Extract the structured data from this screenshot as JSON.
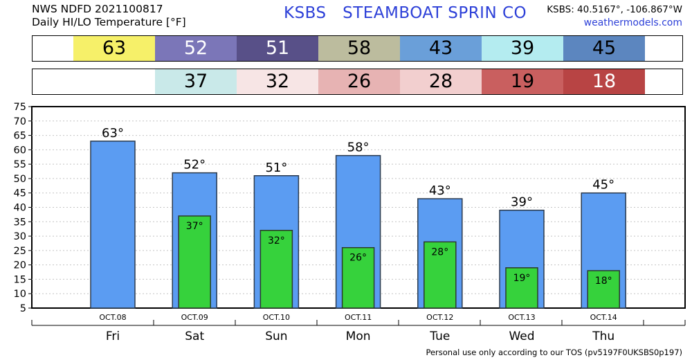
{
  "header": {
    "line1": "NWS NDFD 2021100817",
    "line2": "Daily HI/LO Temperature [°F]",
    "title": "KSBS   STEAMBOAT SPRIN CO",
    "coords": "KSBS: 40.5167°, -106.867°W",
    "site": "weathermodels.com"
  },
  "hi_strip": [
    {
      "text": "63",
      "bg": "#f6f069",
      "fg": "#000000"
    },
    {
      "text": "52",
      "bg": "#7b76b8",
      "fg": "#ffffff"
    },
    {
      "text": "51",
      "bg": "#585088",
      "fg": "#ffffff"
    },
    {
      "text": "58",
      "bg": "#bcbc9e",
      "fg": "#000000"
    },
    {
      "text": "43",
      "bg": "#6a9fd9",
      "fg": "#000000"
    },
    {
      "text": "39",
      "bg": "#b4ecf0",
      "fg": "#000000"
    },
    {
      "text": "45",
      "bg": "#5c86bf",
      "fg": "#000000"
    }
  ],
  "lo_strip": [
    {
      "text": "",
      "bg": "#ffffff",
      "fg": "#000000"
    },
    {
      "text": "37",
      "bg": "#c9e9e9",
      "fg": "#000000"
    },
    {
      "text": "32",
      "bg": "#f7e5e5",
      "fg": "#000000"
    },
    {
      "text": "26",
      "bg": "#e7b3b3",
      "fg": "#000000"
    },
    {
      "text": "28",
      "bg": "#f2cfcf",
      "fg": "#000000"
    },
    {
      "text": "19",
      "bg": "#c95f5f",
      "fg": "#000000"
    },
    {
      "text": "18",
      "bg": "#b84444",
      "fg": "#ffffff"
    }
  ],
  "chart_data": {
    "type": "bar",
    "categories": [
      "Fri",
      "Sat",
      "Sun",
      "Mon",
      "Tue",
      "Wed",
      "Thu"
    ],
    "dates": [
      "OCT.08",
      "OCT.09",
      "OCT.10",
      "OCT.11",
      "OCT.12",
      "OCT.13",
      "OCT.14"
    ],
    "series": [
      {
        "values": [
          63,
          52,
          51,
          58,
          43,
          39,
          45
        ],
        "color": "#5b9cf2"
      },
      {
        "values": [
          null,
          37,
          32,
          26,
          28,
          19,
          18
        ],
        "color": "#36d23c"
      }
    ],
    "hi_labels": [
      "63°",
      "52°",
      "51°",
      "58°",
      "43°",
      "39°",
      "45°"
    ],
    "lo_labels": [
      "",
      "37°",
      "32°",
      "26°",
      "28°",
      "19°",
      "18°"
    ],
    "yticks": [
      "5",
      "10",
      "15",
      "20",
      "25",
      "30",
      "35",
      "40",
      "45",
      "50",
      "55",
      "60",
      "65",
      "70",
      "75"
    ],
    "ylim": [
      5,
      75
    ],
    "grid": true
  },
  "footer": "Personal use only according to our TOS (pv5197F0UKSBS0p197)"
}
